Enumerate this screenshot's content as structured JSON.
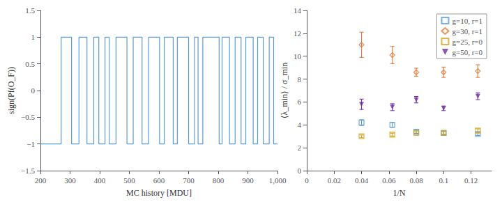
{
  "chart_data": [
    {
      "type": "step",
      "xlabel": "MC history [MDU]",
      "ylabel": "sign(Pf(O_F))",
      "xlim": [
        200,
        1000
      ],
      "ylim": [
        -1.5,
        1.5
      ],
      "xticks": [
        200,
        300,
        400,
        500,
        600,
        700,
        800,
        900,
        {
          "value": 1000,
          "label": "1,000"
        }
      ],
      "yticks": [
        {
          "value": -1.5,
          "label": "−1.5"
        },
        {
          "value": -1.0,
          "label": "−1"
        },
        {
          "value": -0.5,
          "label": "−0.5"
        },
        0,
        0.5,
        1,
        1.5
      ],
      "color": "#5b9bd5",
      "grid": false,
      "x": [
        200,
        270,
        305,
        330,
        357,
        380,
        397,
        418,
        432,
        455,
        492,
        513,
        543,
        565,
        602,
        618,
        648,
        662,
        700,
        720,
        732,
        748,
        803,
        813,
        838,
        857,
        877,
        893,
        918,
        933,
        952,
        972,
        987,
        1000
      ],
      "values": [
        -1,
        1,
        -1,
        1,
        -1,
        1,
        -1,
        1,
        -1,
        1,
        -1,
        1,
        -1,
        1,
        -1,
        1,
        -1,
        1,
        -1,
        1,
        -1,
        1,
        -1,
        1,
        -1,
        1,
        -1,
        1,
        -1,
        1,
        -1,
        1,
        -1,
        -1
      ]
    },
    {
      "type": "scatter",
      "xlabel": "1/N",
      "ylabel": "⟨λ_min⟩ / σ_min",
      "xlim": [
        0,
        0.135
      ],
      "ylim": [
        0,
        14
      ],
      "xticks": [
        0,
        0.02,
        0.04,
        0.06,
        0.08,
        0.1,
        0.12
      ],
      "yticks": [
        0,
        2,
        4,
        6,
        8,
        10,
        12,
        14
      ],
      "grid": false,
      "legend": "upper right",
      "series": [
        {
          "name": "g=10, r=1",
          "color": "#5b9bd5",
          "marker": "open_square",
          "x": [
            0.04,
            0.0625,
            0.08,
            0.1,
            0.125
          ],
          "values": [
            4.2,
            4.0,
            3.4,
            3.3,
            3.2
          ],
          "yerr": [
            0.25,
            0.2,
            0.15,
            0.15,
            0.12
          ]
        },
        {
          "name": "g=30, r=1",
          "color": "#e07b39",
          "marker": "open_diamond",
          "x": [
            0.04,
            0.0625,
            0.08,
            0.1,
            0.125
          ],
          "values": [
            11.0,
            10.1,
            8.6,
            8.6,
            8.7
          ],
          "yerr": [
            1.1,
            0.75,
            0.35,
            0.45,
            0.55
          ]
        },
        {
          "name": "g=25, r=0",
          "color": "#d4a520",
          "marker": "open_square",
          "x": [
            0.04,
            0.0625,
            0.08,
            0.1,
            0.125
          ],
          "values": [
            3.0,
            3.15,
            3.3,
            3.3,
            3.5
          ],
          "yerr": [
            0.12,
            0.12,
            0.1,
            0.1,
            0.15
          ]
        },
        {
          "name": "g=50, r=0",
          "color": "#7030a0",
          "marker": "triangle_down",
          "x": [
            0.04,
            0.0625,
            0.08,
            0.1,
            0.125
          ],
          "values": [
            5.8,
            5.55,
            6.2,
            5.45,
            6.5
          ],
          "yerr": [
            0.45,
            0.3,
            0.28,
            0.2,
            0.3
          ]
        }
      ]
    }
  ]
}
